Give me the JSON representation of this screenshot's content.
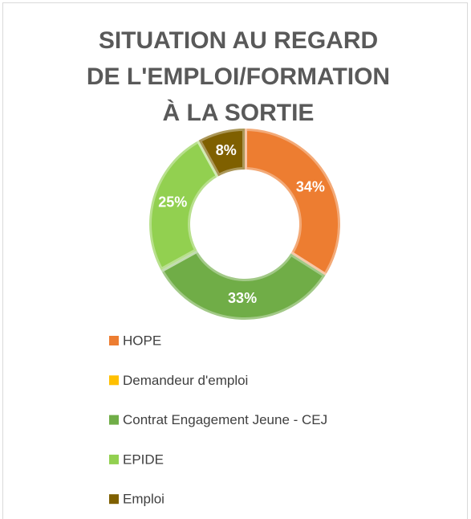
{
  "chart_data": {
    "type": "donut",
    "title": [
      "SITUATION AU REGARD",
      "DE L'EMPLOI/FORMATION",
      "À LA SORTIE"
    ],
    "categories": [
      "HOPE",
      "Demandeur d'emploi",
      "Contrat Engagement Jeune - CEJ",
      "EPIDE",
      "Emploi"
    ],
    "values": [
      34,
      0,
      33,
      25,
      8
    ],
    "value_labels": [
      "34%",
      null,
      "33%",
      "25%",
      "8%"
    ],
    "colors": [
      "#ED7D31",
      "#FFC000",
      "#70AD47",
      "#92D050",
      "#7F6000"
    ],
    "legend": "bottom"
  }
}
